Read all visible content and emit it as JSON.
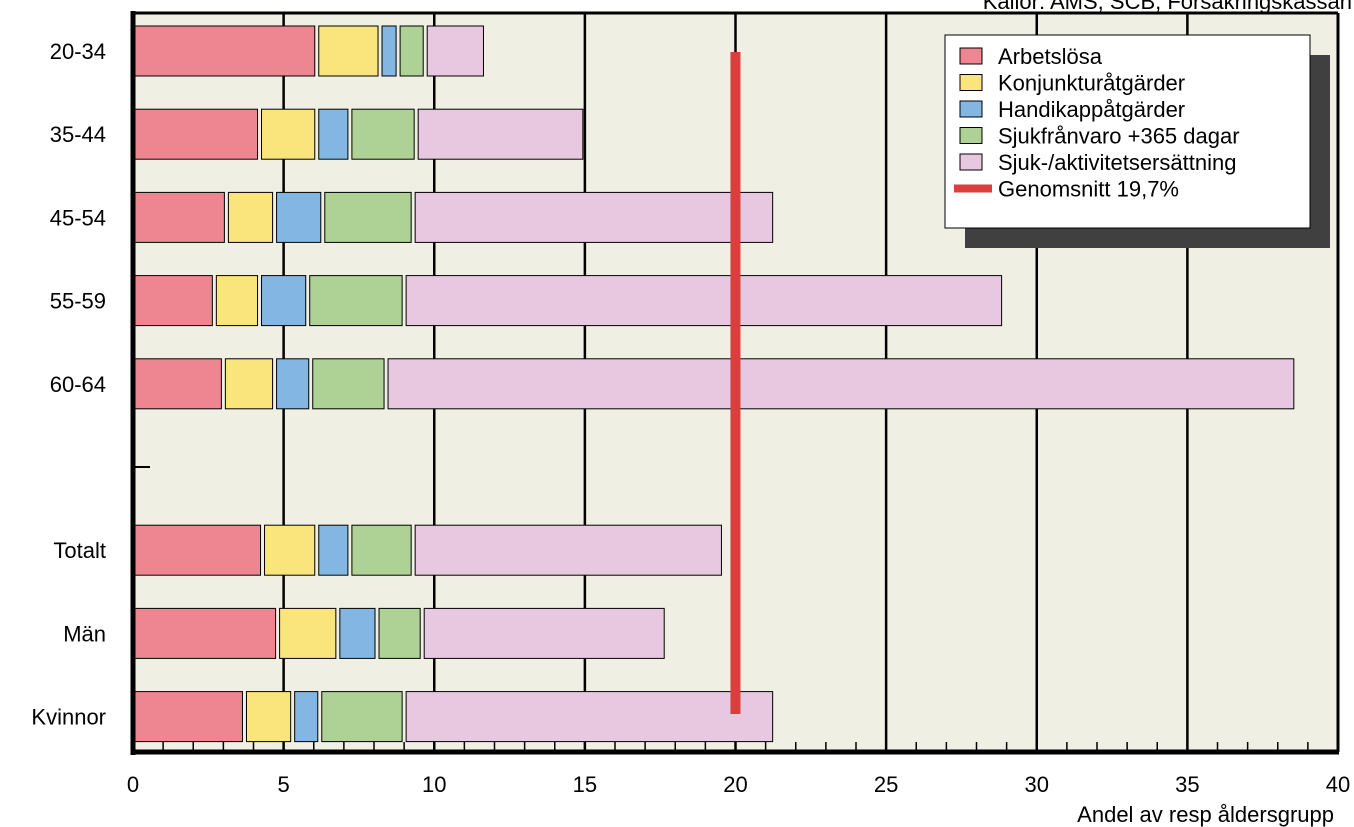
{
  "source_note": "Källor: AMS, SCB, Försäkringskassan",
  "chart_data": {
    "type": "bar",
    "orientation": "horizontal",
    "stacked": true,
    "xlabel": "Andel av resp åldersgrupp",
    "xlim": [
      0,
      40
    ],
    "xticks": [
      "0",
      "5",
      "10",
      "15",
      "20",
      "25",
      "30",
      "35",
      "40"
    ],
    "grid": "vertical major lines",
    "legend_position": "top-right",
    "categories": [
      "20-34",
      "35-44",
      "45-54",
      "55-59",
      "60-64",
      "",
      "Totalt",
      "Män",
      "Kvinnor"
    ],
    "series": [
      {
        "name": "Arbetslösa",
        "color": "#ee8691",
        "values": [
          6.1,
          4.2,
          3.1,
          2.7,
          3.0,
          null,
          4.3,
          4.8,
          3.7
        ]
      },
      {
        "name": "Konjunkturåtgärder",
        "color": "#fae57d",
        "values": [
          2.1,
          1.9,
          1.6,
          1.5,
          1.7,
          null,
          1.8,
          2.0,
          1.6
        ]
      },
      {
        "name": "Handikappåtgärder",
        "color": "#84b6e4",
        "values": [
          0.6,
          1.1,
          1.6,
          1.6,
          1.2,
          null,
          1.1,
          1.3,
          0.9
        ]
      },
      {
        "name": "Sjukfrånvaro +365 dagar",
        "color": "#aed195",
        "values": [
          0.9,
          2.2,
          3.0,
          3.2,
          2.5,
          null,
          2.1,
          1.5,
          2.8
        ]
      },
      {
        "name": "Sjuk-/aktivitetsersättning",
        "color": "#e8c8e0",
        "values": [
          2.0,
          5.6,
          12.0,
          19.9,
          30.2,
          null,
          10.3,
          8.1,
          12.3
        ]
      }
    ],
    "reference_line": {
      "name": "Genomsnitt 19,7%",
      "value": 19.7,
      "color": "#d93f3c"
    },
    "colors": {
      "plot_background": "#efefe3",
      "frame": "#000000",
      "legend_shadow": "#404040"
    }
  }
}
